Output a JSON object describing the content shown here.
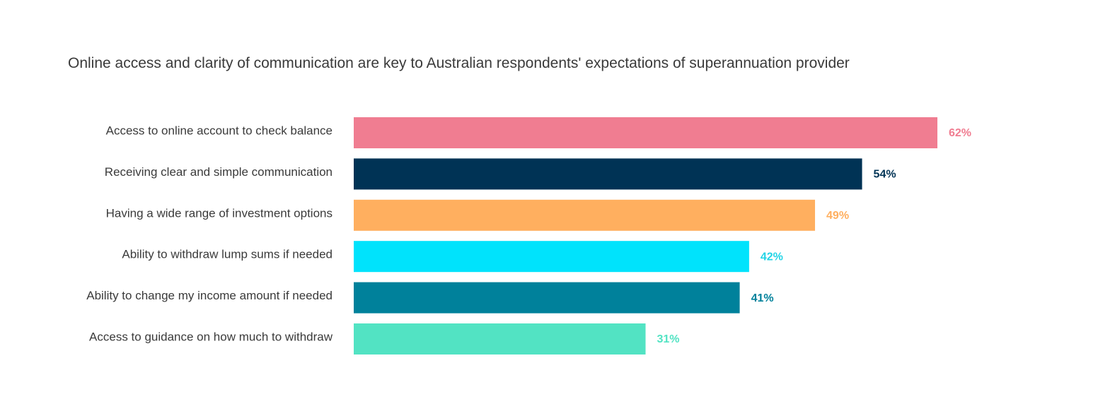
{
  "chart_data": {
    "type": "bar",
    "orientation": "horizontal",
    "title": "Online access and clarity of communication are key to Australian respondents' expectations of superannuation provider",
    "categories": [
      "Access to online account to check balance",
      "Receiving clear and simple communication",
      "Having a wide range of investment options",
      "Ability to withdraw lump sums if needed",
      "Ability to change my income amount if needed",
      "Access to guidance on how much to withdraw"
    ],
    "values": [
      62,
      54,
      49,
      42,
      41,
      31
    ],
    "value_labels": [
      "62%",
      "54%",
      "49%",
      "42%",
      "41%",
      "31%"
    ],
    "colors": [
      "#f07d91",
      "#003355",
      "#ffaf5f",
      "#00e3fc",
      "#00819b",
      "#52e3c3"
    ],
    "label_colors": [
      "#f07d91",
      "#003355",
      "#ffaf5f",
      "#22d4e6",
      "#00819b",
      "#52e3c3"
    ],
    "xlim": [
      0,
      62
    ],
    "grid": false,
    "legend": "none"
  }
}
